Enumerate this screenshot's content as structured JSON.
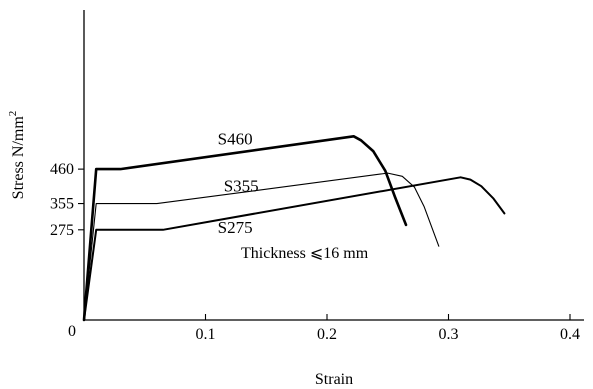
{
  "chart_data": {
    "type": "line",
    "title": "",
    "xlabel": "Strain",
    "ylabel": "Stress N/mm²",
    "ylabel_main": "Stress N/mm",
    "ylabel_sup": "2",
    "xlim": [
      0,
      0.42
    ],
    "ylim": [
      0,
      680
    ],
    "origin_label": "0",
    "x_ticks": [
      0.1,
      0.2,
      0.3,
      0.4
    ],
    "x_tick_labels": [
      "0.1",
      "0.2",
      "0.3",
      "0.4"
    ],
    "y_ticks": [
      460,
      355,
      275
    ],
    "y_tick_labels": [
      "460",
      "355",
      "275"
    ],
    "annotation": "Thickness ⩽16 mm",
    "grid": false,
    "series": [
      {
        "name": "S460",
        "label_position": [
          0.11,
          535
        ],
        "stroke_width": 2.6,
        "x": [
          0,
          0.01,
          0.03,
          0.222,
          0.228,
          0.238,
          0.248,
          0.256,
          0.265
        ],
        "y": [
          0,
          460,
          460,
          560,
          548,
          515,
          455,
          375,
          290
        ]
      },
      {
        "name": "S355",
        "label_position": [
          0.115,
          392
        ],
        "stroke_width": 1.1,
        "x": [
          0,
          0.01,
          0.06,
          0.25,
          0.262,
          0.272,
          0.28,
          0.292
        ],
        "y": [
          0,
          355,
          355,
          448,
          438,
          405,
          345,
          225
        ]
      },
      {
        "name": "S275",
        "label_position": [
          0.11,
          265
        ],
        "stroke_width": 2.0,
        "x": [
          0,
          0.01,
          0.065,
          0.31,
          0.318,
          0.327,
          0.337,
          0.346
        ],
        "y": [
          0,
          275,
          275,
          435,
          428,
          408,
          370,
          325
        ]
      }
    ]
  }
}
